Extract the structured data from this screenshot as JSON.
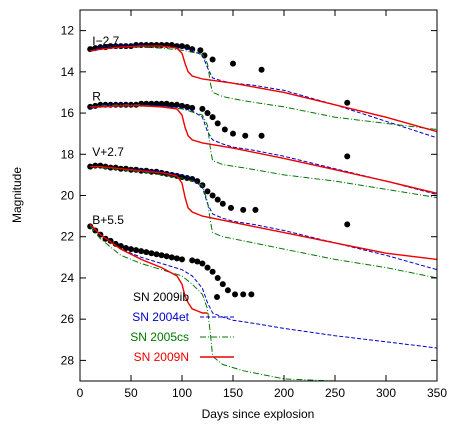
{
  "chart_data": {
    "type": "line",
    "xlabel": "Days since explosion",
    "ylabel": "Magnitude",
    "xlim": [
      0,
      350
    ],
    "ylim": [
      29,
      11
    ],
    "y_inverted": true,
    "grid": false,
    "legend_position": "bottom-left",
    "x_ticks": [
      0,
      50,
      100,
      150,
      200,
      250,
      300,
      350
    ],
    "y_ticks": [
      12,
      14,
      16,
      18,
      20,
      22,
      24,
      26,
      28
    ],
    "band_labels": [
      {
        "text": "I−2.7",
        "x": 12,
        "y": 12.5
      },
      {
        "text": "R",
        "x": 12,
        "y": 15.2
      },
      {
        "text": "V+2.7",
        "x": 12,
        "y": 17.9
      },
      {
        "text": "B+5.5",
        "x": 12,
        "y": 21.2
      }
    ],
    "legend": [
      {
        "label": "SN 2009ib",
        "color": "#000000",
        "style": "dot"
      },
      {
        "label": "SN 2004et",
        "color": "#0000cc",
        "style": "dashed"
      },
      {
        "label": "SN 2005cs",
        "color": "#007700",
        "style": "dashdot"
      },
      {
        "label": "SN 2009N",
        "color": "#ee0000",
        "style": "solid"
      }
    ],
    "series": [
      {
        "name": "SN 2009ib",
        "band": "I−2.7",
        "color": "#000000",
        "style": "dot",
        "x": [
          10,
          15,
          20,
          25,
          30,
          35,
          40,
          45,
          50,
          55,
          60,
          65,
          70,
          75,
          80,
          85,
          90,
          95,
          100,
          105,
          110,
          118,
          122,
          130,
          150,
          178,
          262
        ],
        "y": [
          12.9,
          12.85,
          12.8,
          12.8,
          12.75,
          12.75,
          12.75,
          12.75,
          12.75,
          12.7,
          12.7,
          12.7,
          12.7,
          12.7,
          12.7,
          12.7,
          12.7,
          12.75,
          12.75,
          12.8,
          12.9,
          12.95,
          13.2,
          13.4,
          13.6,
          13.9,
          15.5
        ]
      },
      {
        "name": "SN 2009ib",
        "band": "R",
        "color": "#000000",
        "style": "dot",
        "x": [
          10,
          15,
          20,
          25,
          30,
          35,
          40,
          45,
          50,
          55,
          60,
          65,
          70,
          75,
          80,
          85,
          90,
          95,
          100,
          105,
          110,
          120,
          125,
          130,
          135,
          142,
          150,
          162,
          178,
          262
        ],
        "y": [
          15.7,
          15.65,
          15.6,
          15.6,
          15.6,
          15.6,
          15.6,
          15.6,
          15.6,
          15.6,
          15.55,
          15.55,
          15.55,
          15.55,
          15.55,
          15.55,
          15.6,
          15.6,
          15.65,
          15.7,
          15.75,
          15.8,
          16.0,
          16.2,
          16.5,
          16.8,
          17.0,
          17.1,
          17.1,
          18.1
        ]
      },
      {
        "name": "SN 2009ib",
        "band": "V+2.7",
        "color": "#000000",
        "style": "dot",
        "x": [
          10,
          15,
          20,
          25,
          30,
          35,
          40,
          45,
          50,
          55,
          60,
          65,
          70,
          75,
          80,
          85,
          90,
          95,
          100,
          105,
          110,
          115,
          120,
          125,
          130,
          135,
          140,
          148,
          160,
          172,
          262
        ],
        "y": [
          18.6,
          18.55,
          18.55,
          18.6,
          18.65,
          18.65,
          18.7,
          18.7,
          18.75,
          18.75,
          18.8,
          18.8,
          18.85,
          18.85,
          18.9,
          18.95,
          19.0,
          19.05,
          19.1,
          19.15,
          19.2,
          19.3,
          19.5,
          19.8,
          20.0,
          20.2,
          20.4,
          20.6,
          20.7,
          20.7,
          21.4
        ]
      },
      {
        "name": "SN 2009ib",
        "band": "B+5.5",
        "color": "#000000",
        "style": "dot",
        "x": [
          10,
          15,
          20,
          25,
          30,
          35,
          40,
          45,
          50,
          55,
          60,
          65,
          70,
          75,
          80,
          85,
          90,
          95,
          100,
          110,
          115,
          120,
          125,
          130,
          135,
          140,
          145,
          152,
          160,
          168
        ],
        "y": [
          21.5,
          21.7,
          21.9,
          22.1,
          22.2,
          22.35,
          22.45,
          22.55,
          22.6,
          22.65,
          22.7,
          22.75,
          22.8,
          22.85,
          22.9,
          22.95,
          23.0,
          23.05,
          23.1,
          23.15,
          23.2,
          23.3,
          23.5,
          23.7,
          24.0,
          24.3,
          24.6,
          24.8,
          24.8,
          24.8
        ]
      },
      {
        "name": "SN 2004et",
        "band": "I−2.7",
        "color": "#0000cc",
        "style": "dashed",
        "x": [
          10,
          20,
          40,
          60,
          80,
          100,
          110,
          120,
          125,
          130,
          140,
          150,
          170,
          200,
          250,
          300,
          350
        ],
        "y": [
          13.0,
          12.8,
          12.7,
          12.7,
          12.75,
          12.85,
          12.95,
          13.2,
          13.8,
          14.3,
          14.45,
          14.55,
          14.65,
          14.9,
          15.6,
          16.4,
          17.2
        ]
      },
      {
        "name": "SN 2004et",
        "band": "R",
        "color": "#0000cc",
        "style": "dashed",
        "x": [
          10,
          20,
          40,
          60,
          80,
          100,
          110,
          120,
          125,
          130,
          140,
          150,
          170,
          200,
          250,
          300,
          350
        ],
        "y": [
          15.8,
          15.6,
          15.55,
          15.6,
          15.65,
          15.75,
          15.9,
          16.2,
          16.9,
          17.3,
          17.5,
          17.65,
          17.8,
          18.1,
          18.7,
          19.3,
          19.95
        ]
      },
      {
        "name": "SN 2004et",
        "band": "V+2.7",
        "color": "#0000cc",
        "style": "dashed",
        "x": [
          10,
          20,
          40,
          60,
          80,
          100,
          110,
          120,
          125,
          130,
          140,
          150,
          170,
          200,
          250,
          300,
          350
        ],
        "y": [
          18.6,
          18.6,
          18.7,
          18.75,
          18.85,
          19.0,
          19.2,
          19.6,
          20.4,
          20.9,
          21.1,
          21.25,
          21.4,
          21.7,
          22.3,
          22.9,
          23.6
        ]
      },
      {
        "name": "SN 2004et",
        "band": "B+5.5",
        "color": "#0000cc",
        "style": "dashed",
        "x": [
          10,
          20,
          40,
          60,
          80,
          100,
          110,
          120,
          125,
          130,
          140,
          150,
          170,
          200,
          250,
          300,
          350
        ],
        "y": [
          21.4,
          21.9,
          22.6,
          23.0,
          23.3,
          23.6,
          23.9,
          24.5,
          25.2,
          25.7,
          25.9,
          26.05,
          26.2,
          26.45,
          26.8,
          27.1,
          27.4
        ]
      },
      {
        "name": "SN 2005cs",
        "band": "I−2.7",
        "color": "#007700",
        "style": "dashdot",
        "x": [
          10,
          20,
          40,
          60,
          80,
          100,
          110,
          120,
          125,
          128,
          130,
          140,
          160,
          200,
          250,
          300,
          350
        ],
        "y": [
          13.0,
          12.9,
          12.8,
          12.8,
          12.85,
          12.95,
          13.05,
          13.15,
          13.6,
          14.6,
          15.0,
          15.2,
          15.4,
          15.7,
          16.2,
          16.5,
          16.8
        ]
      },
      {
        "name": "SN 2005cs",
        "band": "R",
        "color": "#007700",
        "style": "dashdot",
        "x": [
          10,
          20,
          40,
          60,
          80,
          100,
          110,
          120,
          125,
          128,
          130,
          140,
          160,
          200,
          250,
          300,
          350
        ],
        "y": [
          15.7,
          15.65,
          15.6,
          15.6,
          15.7,
          15.8,
          15.95,
          16.1,
          16.6,
          17.8,
          18.3,
          18.5,
          18.65,
          19.0,
          19.3,
          19.7,
          20.1
        ]
      },
      {
        "name": "SN 2005cs",
        "band": "V+2.7",
        "color": "#007700",
        "style": "dashdot",
        "x": [
          10,
          20,
          40,
          60,
          80,
          100,
          110,
          120,
          125,
          128,
          130,
          140,
          160,
          200,
          250,
          300,
          350
        ],
        "y": [
          18.6,
          18.65,
          18.75,
          18.85,
          19.0,
          19.15,
          19.3,
          19.5,
          20.3,
          21.3,
          21.8,
          22.0,
          22.2,
          22.6,
          23.1,
          23.5,
          24.0
        ]
      },
      {
        "name": "SN 2005cs",
        "band": "B+5.5",
        "color": "#007700",
        "style": "dashdot",
        "x": [
          10,
          20,
          40,
          60,
          80,
          100,
          110,
          120,
          125,
          128,
          130,
          140,
          160,
          200,
          250,
          300
        ],
        "y": [
          21.5,
          22.1,
          22.9,
          23.3,
          23.6,
          23.9,
          24.3,
          24.8,
          25.5,
          26.8,
          27.8,
          28.2,
          28.5,
          28.9,
          29.0,
          29.0
        ]
      },
      {
        "name": "SN 2009N",
        "band": "I−2.7",
        "color": "#ee0000",
        "style": "solid",
        "x": [
          10,
          20,
          40,
          60,
          80,
          95,
          100,
          103,
          106,
          110,
          120,
          150,
          200,
          250,
          300,
          350
        ],
        "y": [
          13.0,
          12.9,
          12.8,
          12.75,
          12.75,
          12.85,
          13.1,
          13.6,
          14.0,
          14.2,
          14.35,
          14.55,
          15.0,
          15.6,
          16.2,
          16.9
        ]
      },
      {
        "name": "SN 2009N",
        "band": "R",
        "color": "#ee0000",
        "style": "solid",
        "x": [
          10,
          20,
          40,
          60,
          80,
          95,
          100,
          103,
          106,
          110,
          120,
          150,
          200,
          250,
          300,
          350
        ],
        "y": [
          15.7,
          15.7,
          15.65,
          15.65,
          15.7,
          15.8,
          16.1,
          16.7,
          17.1,
          17.3,
          17.45,
          17.7,
          18.2,
          18.75,
          19.3,
          19.9
        ]
      },
      {
        "name": "SN 2009N",
        "band": "V+2.7",
        "color": "#ee0000",
        "style": "solid",
        "x": [
          10,
          20,
          40,
          60,
          80,
          95,
          100,
          103,
          106,
          110,
          120,
          150,
          200,
          250,
          300,
          350
        ],
        "y": [
          18.6,
          18.6,
          18.7,
          18.8,
          18.9,
          19.05,
          19.4,
          20.1,
          20.6,
          20.8,
          21.0,
          21.3,
          21.8,
          22.3,
          22.8,
          23.1
        ]
      },
      {
        "name": "SN 2009N",
        "band": "B+5.5",
        "color": "#ee0000",
        "style": "solid",
        "x": [
          10,
          20,
          40,
          60,
          80,
          95,
          100,
          103,
          106,
          110,
          115,
          120,
          125
        ],
        "y": [
          21.4,
          21.9,
          22.6,
          23.1,
          23.5,
          23.9,
          24.3,
          24.9,
          25.2,
          25.5,
          25.6,
          25.7,
          25.7
        ]
      }
    ]
  }
}
